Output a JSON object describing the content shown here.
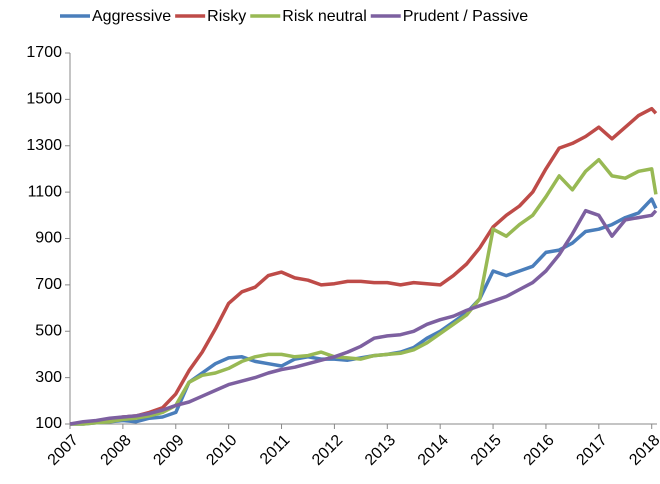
{
  "chart_data": {
    "type": "line",
    "x": [
      2007,
      2007.25,
      2007.5,
      2007.75,
      2008,
      2008.25,
      2008.5,
      2008.75,
      2009,
      2009.25,
      2009.5,
      2009.75,
      2010,
      2010.25,
      2010.5,
      2010.75,
      2011,
      2011.25,
      2011.5,
      2011.75,
      2012,
      2012.25,
      2012.5,
      2012.75,
      2013,
      2013.25,
      2013.5,
      2013.75,
      2014,
      2014.25,
      2014.5,
      2014.75,
      2015,
      2015.25,
      2015.5,
      2015.75,
      2016,
      2016.25,
      2016.5,
      2016.75,
      2017,
      2017.25,
      2017.5,
      2017.75,
      2018,
      2018.08
    ],
    "series": [
      {
        "name": "Aggressive",
        "color": "#4a7ebb",
        "values": [
          100,
          100,
          105,
          110,
          115,
          110,
          125,
          130,
          150,
          280,
          320,
          360,
          385,
          390,
          370,
          360,
          350,
          380,
          390,
          380,
          380,
          375,
          385,
          395,
          400,
          410,
          430,
          470,
          500,
          540,
          580,
          640,
          760,
          740,
          760,
          780,
          840,
          850,
          880,
          930,
          940,
          960,
          990,
          1010,
          1070,
          1030
        ]
      },
      {
        "name": "Risky",
        "color": "#be4b48",
        "values": [
          100,
          105,
          110,
          120,
          130,
          135,
          150,
          170,
          230,
          330,
          410,
          510,
          620,
          670,
          690,
          740,
          755,
          730,
          720,
          700,
          705,
          715,
          715,
          710,
          710,
          700,
          710,
          705,
          700,
          740,
          790,
          860,
          950,
          1000,
          1040,
          1100,
          1200,
          1290,
          1310,
          1340,
          1380,
          1330,
          1380,
          1430,
          1460,
          1440
        ]
      },
      {
        "name": "Risk neutral",
        "color": "#98b954",
        "values": [
          100,
          100,
          105,
          110,
          120,
          125,
          135,
          150,
          180,
          280,
          310,
          320,
          340,
          370,
          390,
          400,
          400,
          390,
          395,
          410,
          390,
          385,
          380,
          395,
          400,
          405,
          420,
          450,
          490,
          530,
          570,
          640,
          940,
          910,
          960,
          1000,
          1080,
          1170,
          1110,
          1190,
          1240,
          1170,
          1160,
          1190,
          1200,
          1090
        ]
      },
      {
        "name": "Prudent / Passive",
        "color": "#7d60a0",
        "values": [
          100,
          110,
          115,
          125,
          130,
          135,
          145,
          160,
          180,
          195,
          220,
          245,
          270,
          285,
          300,
          320,
          335,
          345,
          360,
          375,
          390,
          410,
          435,
          470,
          480,
          485,
          500,
          530,
          550,
          565,
          590,
          610,
          630,
          650,
          680,
          710,
          760,
          830,
          920,
          1020,
          1000,
          910,
          980,
          990,
          1000,
          1020
        ]
      }
    ],
    "xlim": [
      2007,
      2018.1
    ],
    "xticks": [
      2007,
      2008,
      2009,
      2010,
      2011,
      2012,
      2013,
      2014,
      2015,
      2016,
      2017,
      2018
    ],
    "ylim": [
      100,
      1700
    ],
    "yticks": [
      100,
      300,
      500,
      700,
      900,
      1100,
      1300,
      1500,
      1700
    ],
    "legend": "top",
    "grid": false
  }
}
